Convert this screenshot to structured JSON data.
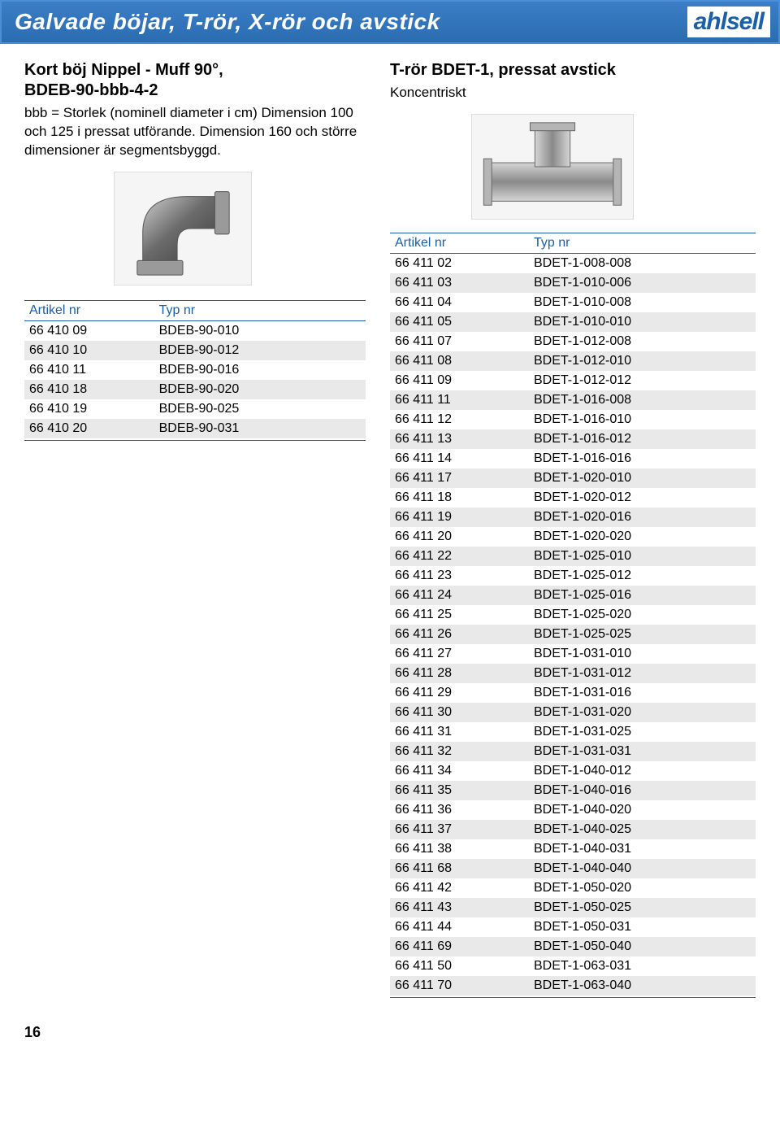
{
  "header": {
    "title": "Galvade böjar, T-rör, X-rör och avstick",
    "logo": "ahlsell"
  },
  "left": {
    "title_line1": "Kort böj Nippel - Muff 90°,",
    "title_line2": "BDEB-90-bbb-4-2",
    "desc": "bbb = Storlek (nominell diameter i cm) Dimension 100 och 125 i pressat utförande. Dimension 160 och större dimensioner är segmentsbyggd.",
    "table": {
      "headers": [
        "Artikel nr",
        "Typ nr"
      ],
      "rows": [
        [
          "66 410 09",
          "BDEB-90-010"
        ],
        [
          "66 410 10",
          "BDEB-90-012"
        ],
        [
          "66 410 11",
          "BDEB-90-016"
        ],
        [
          "66 410 18",
          "BDEB-90-020"
        ],
        [
          "66 410 19",
          "BDEB-90-025"
        ],
        [
          "66 410 20",
          "BDEB-90-031"
        ]
      ]
    }
  },
  "right": {
    "title": "T-rör BDET-1, pressat avstick",
    "subtitle": "Koncentriskt",
    "table": {
      "headers": [
        "Artikel nr",
        "Typ nr"
      ],
      "rows": [
        [
          "66 411 02",
          "BDET-1-008-008"
        ],
        [
          "66 411 03",
          "BDET-1-010-006"
        ],
        [
          "66 411 04",
          "BDET-1-010-008"
        ],
        [
          "66 411 05",
          "BDET-1-010-010"
        ],
        [
          "66 411 07",
          "BDET-1-012-008"
        ],
        [
          "66 411 08",
          "BDET-1-012-010"
        ],
        [
          "66 411 09",
          "BDET-1-012-012"
        ],
        [
          "66 411 11",
          "BDET-1-016-008"
        ],
        [
          "66 411 12",
          "BDET-1-016-010"
        ],
        [
          "66 411 13",
          "BDET-1-016-012"
        ],
        [
          "66 411 14",
          "BDET-1-016-016"
        ],
        [
          "66 411 17",
          "BDET-1-020-010"
        ],
        [
          "66 411 18",
          "BDET-1-020-012"
        ],
        [
          "66 411 19",
          "BDET-1-020-016"
        ],
        [
          "66 411 20",
          "BDET-1-020-020"
        ],
        [
          "66 411 22",
          "BDET-1-025-010"
        ],
        [
          "66 411 23",
          "BDET-1-025-012"
        ],
        [
          "66 411 24",
          "BDET-1-025-016"
        ],
        [
          "66 411 25",
          "BDET-1-025-020"
        ],
        [
          "66 411 26",
          "BDET-1-025-025"
        ],
        [
          "66 411 27",
          "BDET-1-031-010"
        ],
        [
          "66 411 28",
          "BDET-1-031-012"
        ],
        [
          "66 411 29",
          "BDET-1-031-016"
        ],
        [
          "66 411 30",
          "BDET-1-031-020"
        ],
        [
          "66 411 31",
          "BDET-1-031-025"
        ],
        [
          "66 411 32",
          "BDET-1-031-031"
        ],
        [
          "66 411 34",
          "BDET-1-040-012"
        ],
        [
          "66 411 35",
          "BDET-1-040-016"
        ],
        [
          "66 411 36",
          "BDET-1-040-020"
        ],
        [
          "66 411 37",
          "BDET-1-040-025"
        ],
        [
          "66 411 38",
          "BDET-1-040-031"
        ],
        [
          "66 411 68",
          "BDET-1-040-040"
        ],
        [
          "66 411 42",
          "BDET-1-050-020"
        ],
        [
          "66 411 43",
          "BDET-1-050-025"
        ],
        [
          "66 411 44",
          "BDET-1-050-031"
        ],
        [
          "66 411 69",
          "BDET-1-050-040"
        ],
        [
          "66 411 50",
          "BDET-1-063-031"
        ],
        [
          "66 411 70",
          "BDET-1-063-040"
        ]
      ]
    }
  },
  "page_number": "16",
  "colors": {
    "header_bg": "#2b6cb0",
    "header_border": "#4a90d9",
    "accent": "#1a5fa8",
    "row_alt": "#e9e9e9",
    "text": "#000000",
    "bg": "#ffffff"
  }
}
